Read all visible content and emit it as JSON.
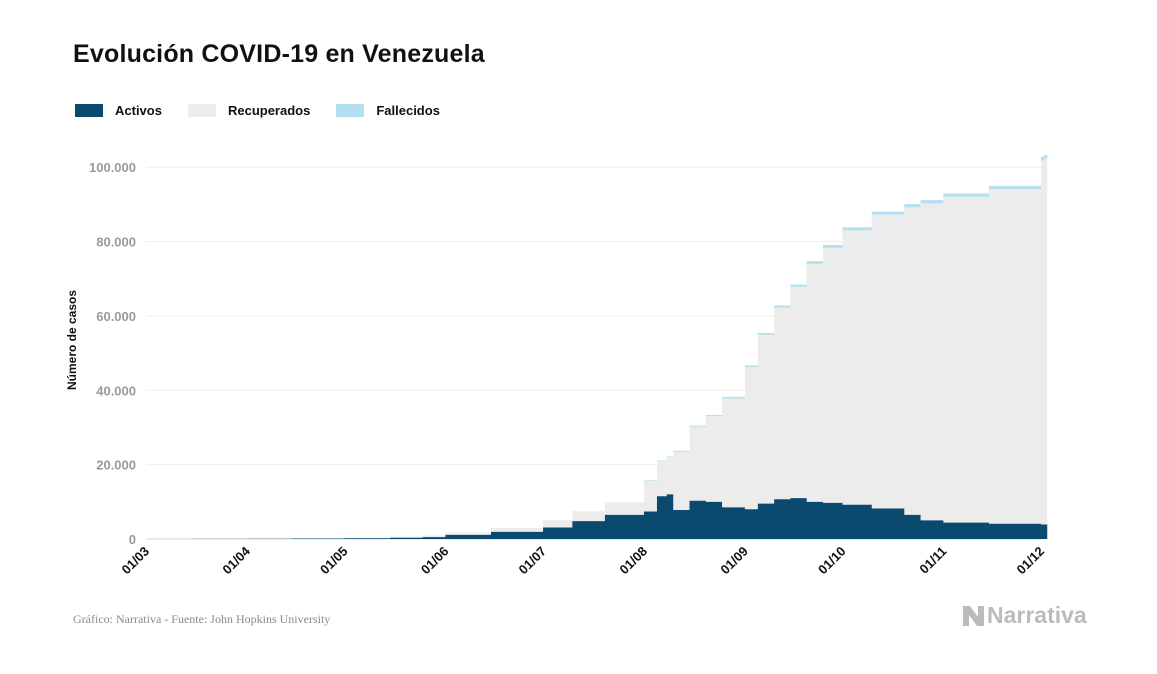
{
  "title": "Evolución COVID-19 en Venezuela",
  "legend": [
    {
      "label": "Activos",
      "color": "#0b4a6f"
    },
    {
      "label": "Recuperados",
      "color": "#ececec"
    },
    {
      "label": "Fallecidos",
      "color": "#b3dff0"
    }
  ],
  "source": "Gráfico: Narrativa - Fuente: John Hopkins University",
  "brand": "Narrativa",
  "chart_data": {
    "type": "area",
    "stacked": true,
    "ylabel": "Número de casos",
    "ylim": [
      0,
      110000
    ],
    "yticks": [
      0,
      20000,
      40000,
      60000,
      80000,
      100000
    ],
    "ytick_labels": [
      "0",
      "20.000",
      "40.000",
      "60.000",
      "80.000",
      "100.000"
    ],
    "xtick_labels": [
      "01/03",
      "01/04",
      "01/05",
      "01/06",
      "01/07",
      "01/08",
      "01/09",
      "01/10",
      "01/11",
      "01/12"
    ],
    "xlim_days": [
      0,
      275
    ],
    "x_dates": [
      "01/03",
      "15/03",
      "01/04",
      "15/04",
      "01/05",
      "15/05",
      "25/05",
      "01/06",
      "15/06",
      "01/07",
      "10/07",
      "20/07",
      "01/08",
      "05/08",
      "08/08",
      "10/08",
      "15/08",
      "20/08",
      "25/08",
      "01/09",
      "05/09",
      "10/09",
      "15/09",
      "20/09",
      "25/09",
      "01/10",
      "10/10",
      "20/10",
      "25/10",
      "01/11",
      "15/11",
      "01/12",
      "02/12"
    ],
    "series": [
      {
        "name": "Activos",
        "values": [
          0,
          20,
          80,
          150,
          200,
          350,
          500,
          1100,
          1900,
          3100,
          4800,
          6500,
          7400,
          11500,
          12000,
          7800,
          10300,
          10000,
          8500,
          8000,
          9500,
          10700,
          11000,
          10000,
          9700,
          9200,
          8200,
          6500,
          5000,
          4400,
          4100,
          3900,
          3900
        ]
      },
      {
        "name": "Recuperados",
        "values": [
          0,
          0,
          20,
          100,
          150,
          250,
          400,
          600,
          1050,
          1900,
          2600,
          3300,
          8300,
          9400,
          10000,
          15700,
          19900,
          23000,
          29300,
          38200,
          45400,
          51500,
          56800,
          64000,
          68600,
          73800,
          79000,
          82700,
          85200,
          87600,
          90000,
          97900,
          98400
        ]
      },
      {
        "name": "Fallecidos",
        "values": [
          0,
          0,
          5,
          10,
          10,
          10,
          12,
          14,
          22,
          33,
          45,
          65,
          170,
          200,
          230,
          260,
          300,
          360,
          420,
          480,
          520,
          590,
          630,
          720,
          780,
          800,
          850,
          880,
          950,
          940,
          880,
          1000,
          1000
        ]
      }
    ]
  }
}
